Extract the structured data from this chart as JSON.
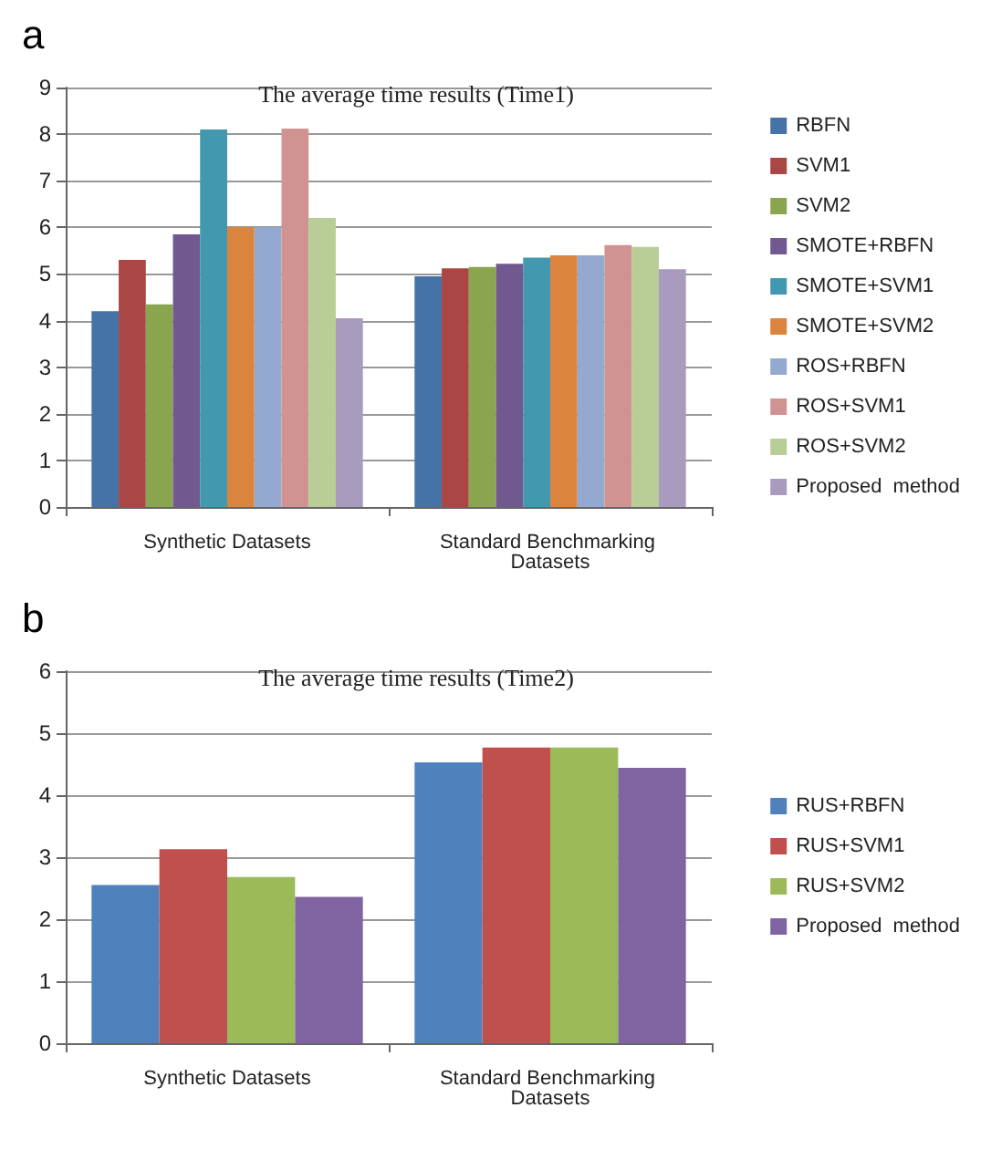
{
  "chart_data": [
    {
      "type": "bar",
      "title": "The average time results (Time1)",
      "annotations": [
        "a"
      ],
      "categories": [
        "Synthetic Datasets",
        "Standard Benchmarking Datasets"
      ],
      "series": [
        {
          "name": "RBFN",
          "color": "#4572a7",
          "values": [
            4.2,
            4.95
          ]
        },
        {
          "name": "SVM1",
          "color": "#aa4643",
          "values": [
            5.3,
            5.12
          ]
        },
        {
          "name": "SVM2",
          "color": "#89a54e",
          "values": [
            4.35,
            5.15
          ]
        },
        {
          "name": "SMOTE+RBFN",
          "color": "#71588f",
          "values": [
            5.85,
            5.22
          ]
        },
        {
          "name": "SMOTE+SVM1",
          "color": "#4198af",
          "values": [
            8.1,
            5.35
          ]
        },
        {
          "name": "SMOTE+SVM2",
          "color": "#db843d",
          "values": [
            6.0,
            5.4
          ]
        },
        {
          "name": "ROS+RBFN",
          "color": "#93a9cf",
          "values": [
            6.0,
            5.4
          ]
        },
        {
          "name": "ROS+SVM1",
          "color": "#d19392",
          "values": [
            8.12,
            5.62
          ]
        },
        {
          "name": "ROS+SVM2",
          "color": "#b9cd96",
          "values": [
            6.2,
            5.58
          ]
        },
        {
          "name": "Proposed  method",
          "color": "#a99bbd",
          "values": [
            4.05,
            5.1
          ]
        }
      ],
      "ylim": [
        0,
        9
      ],
      "yticks": [
        0,
        1,
        2,
        3,
        4,
        5,
        6,
        7,
        8,
        9
      ],
      "grid": "y",
      "legend": "right"
    },
    {
      "type": "bar",
      "title": "The average time results (Time2)",
      "annotations": [
        "b"
      ],
      "categories": [
        "Synthetic Datasets",
        "Standard Benchmarking Datasets"
      ],
      "series": [
        {
          "name": "RUS+RBFN",
          "color": "#4f81bd",
          "values": [
            2.55,
            4.53
          ]
        },
        {
          "name": "RUS+SVM1",
          "color": "#c0504d",
          "values": [
            3.13,
            4.77
          ]
        },
        {
          "name": "RUS+SVM2",
          "color": "#9bbb59",
          "values": [
            2.68,
            4.77
          ]
        },
        {
          "name": "Proposed  method",
          "color": "#8064a2",
          "values": [
            2.36,
            4.44
          ]
        }
      ],
      "ylim": [
        0,
        6
      ],
      "yticks": [
        0,
        1,
        2,
        3,
        4,
        5,
        6
      ],
      "grid": "y",
      "legend": "right"
    }
  ]
}
